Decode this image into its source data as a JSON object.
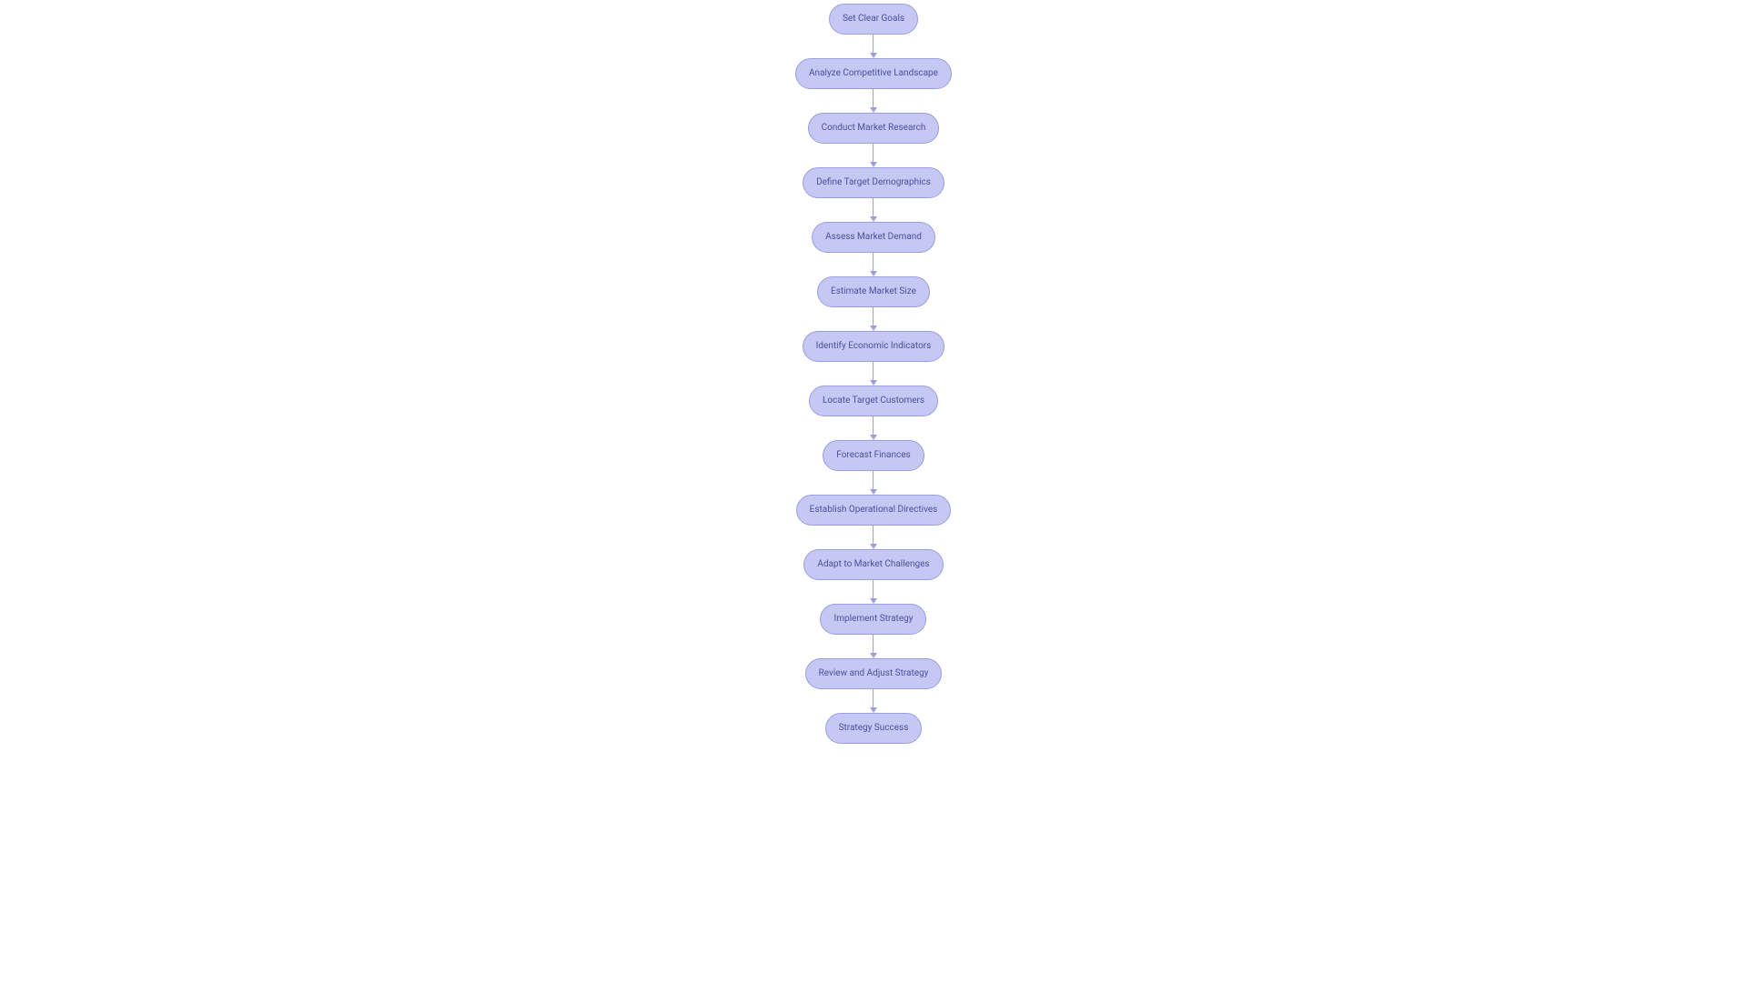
{
  "flowchart": {
    "type": "flowchart",
    "direction": "vertical",
    "background_color": "#ffffff",
    "node_fill": "#c4c8f2",
    "node_border": "#9a9ee0",
    "node_text_color": "#4a4f9e",
    "node_fontsize": 10,
    "node_padding_x": 14,
    "node_padding_y": 10,
    "node_border_radius": 999,
    "connector_color": "#9a9ee0",
    "connector_line_height": 20,
    "connector_arrow_size": 4,
    "nodes": [
      {
        "id": "n1",
        "label": "Set Clear Goals"
      },
      {
        "id": "n2",
        "label": "Analyze Competitive Landscape"
      },
      {
        "id": "n3",
        "label": "Conduct Market Research"
      },
      {
        "id": "n4",
        "label": "Define Target Demographics"
      },
      {
        "id": "n5",
        "label": "Assess Market Demand"
      },
      {
        "id": "n6",
        "label": "Estimate Market Size"
      },
      {
        "id": "n7",
        "label": "Identify Economic Indicators"
      },
      {
        "id": "n8",
        "label": "Locate Target Customers"
      },
      {
        "id": "n9",
        "label": "Forecast Finances"
      },
      {
        "id": "n10",
        "label": "Establish Operational Directives"
      },
      {
        "id": "n11",
        "label": "Adapt to Market Challenges"
      },
      {
        "id": "n12",
        "label": "Implement Strategy"
      },
      {
        "id": "n13",
        "label": "Review and Adjust Strategy"
      },
      {
        "id": "n14",
        "label": "Strategy Success"
      }
    ],
    "edges": [
      {
        "from": "n1",
        "to": "n2"
      },
      {
        "from": "n2",
        "to": "n3"
      },
      {
        "from": "n3",
        "to": "n4"
      },
      {
        "from": "n4",
        "to": "n5"
      },
      {
        "from": "n5",
        "to": "n6"
      },
      {
        "from": "n6",
        "to": "n7"
      },
      {
        "from": "n7",
        "to": "n8"
      },
      {
        "from": "n8",
        "to": "n9"
      },
      {
        "from": "n9",
        "to": "n10"
      },
      {
        "from": "n10",
        "to": "n11"
      },
      {
        "from": "n11",
        "to": "n12"
      },
      {
        "from": "n12",
        "to": "n13"
      },
      {
        "from": "n13",
        "to": "n14"
      }
    ]
  }
}
